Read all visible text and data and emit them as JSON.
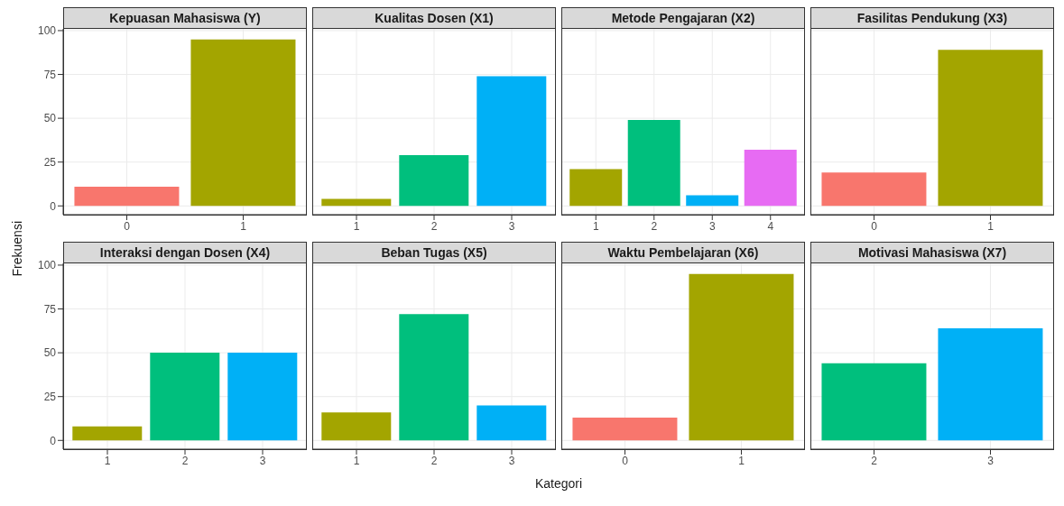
{
  "chart_data": [
    {
      "type": "bar",
      "title": "Kepuasan Mahasiswa (Y)",
      "ylabel": "Frekuensi",
      "categories": [
        "0",
        "1"
      ],
      "values": [
        11,
        95
      ],
      "colors": [
        "#f8766d",
        "#a3a500"
      ],
      "ylim": [
        -5,
        101
      ],
      "yticks": [
        0,
        25,
        50,
        75,
        100
      ],
      "grid": true
    },
    {
      "type": "bar",
      "title": "Kualitas Dosen (X1)",
      "categories": [
        "1",
        "2",
        "3"
      ],
      "values": [
        4,
        29,
        74
      ],
      "colors": [
        "#a3a500",
        "#00bf7d",
        "#00b0f6"
      ],
      "ylim": [
        -5,
        101
      ],
      "yticks": [
        0,
        25,
        50,
        75,
        100
      ],
      "grid": true,
      "tick_labels": "x"
    },
    {
      "type": "bar",
      "title": "Metode Pengajaran (X2)",
      "categories": [
        "1",
        "2",
        "3",
        "4"
      ],
      "values": [
        21,
        49,
        6,
        32
      ],
      "colors": [
        "#a3a500",
        "#00bf7d",
        "#00b0f6",
        "#e76bf3"
      ],
      "ylim": [
        -5,
        101
      ],
      "yticks": [
        0,
        25,
        50,
        75,
        100
      ],
      "grid": true,
      "tick_labels": "x"
    },
    {
      "type": "bar",
      "title": "Fasilitas Pendukung (X3)",
      "categories": [
        "0",
        "1"
      ],
      "values": [
        19,
        89
      ],
      "colors": [
        "#f8766d",
        "#a3a500"
      ],
      "ylim": [
        -5,
        101
      ],
      "yticks": [
        0,
        25,
        50,
        75,
        100
      ],
      "grid": true,
      "tick_labels": "x"
    },
    {
      "type": "bar",
      "title": "Interaksi dengan Dosen (X4)",
      "categories": [
        "1",
        "2",
        "3"
      ],
      "values": [
        8,
        50,
        50
      ],
      "colors": [
        "#a3a500",
        "#00bf7d",
        "#00b0f6"
      ],
      "ylim": [
        -5,
        101
      ],
      "yticks": [
        0,
        25,
        50,
        75,
        100
      ],
      "grid": true
    },
    {
      "type": "bar",
      "title": "Beban Tugas (X5)",
      "xlabel": "Kategori",
      "categories": [
        "1",
        "2",
        "3"
      ],
      "values": [
        16,
        72,
        20
      ],
      "colors": [
        "#a3a500",
        "#00bf7d",
        "#00b0f6"
      ],
      "ylim": [
        -5,
        101
      ],
      "yticks": [
        0,
        25,
        50,
        75,
        100
      ],
      "grid": true,
      "tick_labels": "x"
    },
    {
      "type": "bar",
      "title": "Waktu Pembelajaran (X6)",
      "categories": [
        "0",
        "1"
      ],
      "values": [
        13,
        95
      ],
      "colors": [
        "#f8766d",
        "#a3a500"
      ],
      "ylim": [
        -5,
        101
      ],
      "yticks": [
        0,
        25,
        50,
        75,
        100
      ],
      "grid": true,
      "tick_labels": "x"
    },
    {
      "type": "bar",
      "title": "Motivasi Mahasiswa (X7)",
      "categories": [
        "2",
        "3"
      ],
      "values": [
        44,
        64
      ],
      "colors": [
        "#00bf7d",
        "#00b0f6"
      ],
      "ylim": [
        -5,
        101
      ],
      "yticks": [
        0,
        25,
        50,
        75,
        100
      ],
      "grid": true,
      "tick_labels": "x"
    }
  ]
}
